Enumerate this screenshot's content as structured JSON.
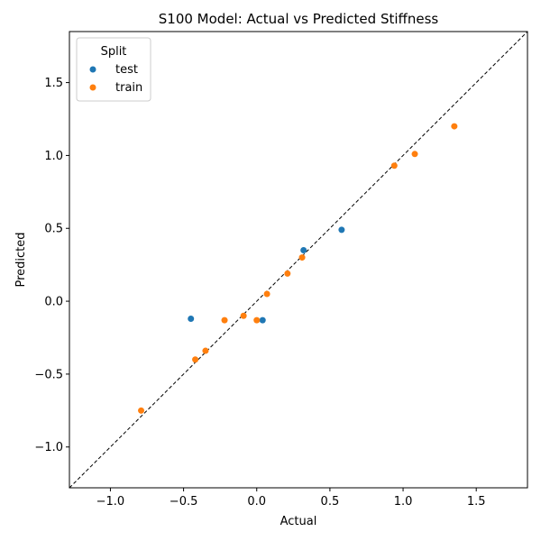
{
  "chart_data": {
    "type": "scatter",
    "title": "S100 Model: Actual vs Predicted Stiffness",
    "xlabel": "Actual",
    "ylabel": "Predicted",
    "xlim": [
      -1.28,
      1.85
    ],
    "ylim": [
      -1.28,
      1.85
    ],
    "xticks": [
      "−1.0",
      "−0.5",
      "0.0",
      "0.5",
      "1.0",
      "1.5"
    ],
    "yticks": [
      "−1.0",
      "−0.5",
      "0.0",
      "0.5",
      "1.0",
      "1.5"
    ],
    "grid": false,
    "reference_line": "y = x (dashed, black)",
    "legend": {
      "title": "Split",
      "placement": "top-left"
    },
    "series": [
      {
        "name": "test",
        "color": "#1f77b4",
        "points": [
          {
            "x": -0.45,
            "y": -0.12
          },
          {
            "x": 0.04,
            "y": -0.13
          },
          {
            "x": 0.32,
            "y": 0.35
          },
          {
            "x": 0.58,
            "y": 0.49
          }
        ]
      },
      {
        "name": "train",
        "color": "#ff7f0e",
        "points": [
          {
            "x": -0.79,
            "y": -0.75
          },
          {
            "x": -0.42,
            "y": -0.4
          },
          {
            "x": -0.35,
            "y": -0.34
          },
          {
            "x": -0.22,
            "y": -0.13
          },
          {
            "x": -0.09,
            "y": -0.1
          },
          {
            "x": 0.0,
            "y": -0.13
          },
          {
            "x": 0.07,
            "y": 0.05
          },
          {
            "x": 0.21,
            "y": 0.19
          },
          {
            "x": 0.31,
            "y": 0.3
          },
          {
            "x": 0.94,
            "y": 0.93
          },
          {
            "x": 1.08,
            "y": 1.01
          },
          {
            "x": 1.35,
            "y": 1.2
          }
        ]
      }
    ]
  }
}
